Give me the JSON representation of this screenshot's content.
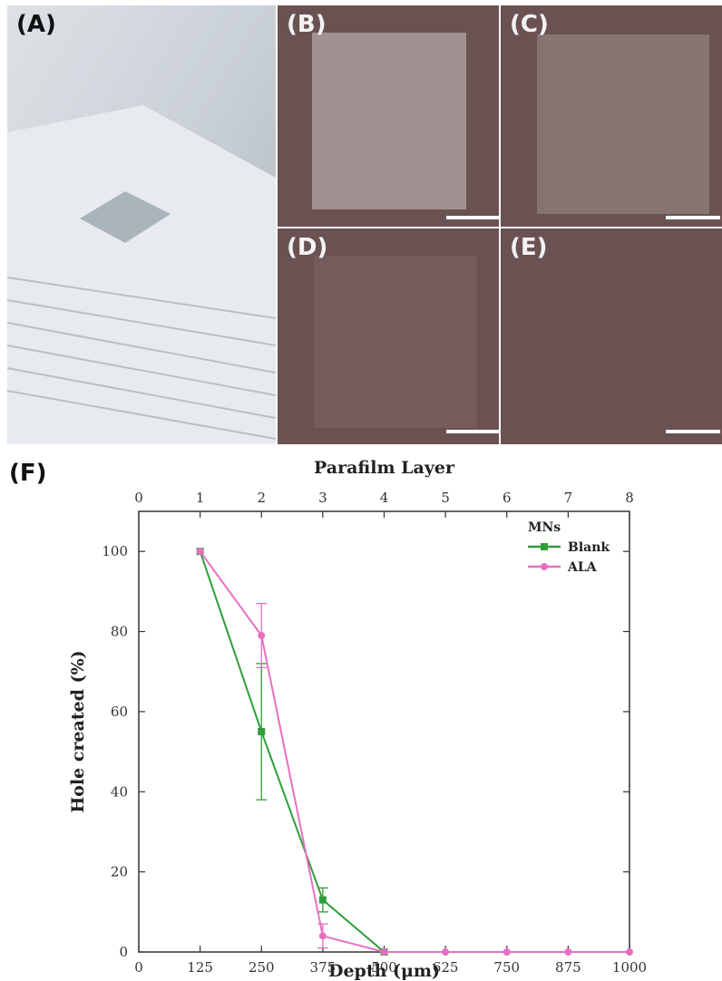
{
  "panels": {
    "a": {
      "label": "(A)"
    },
    "b": {
      "label": "(B)"
    },
    "c": {
      "label": "(C)"
    },
    "d": {
      "label": "(D)"
    },
    "e": {
      "label": "(E)"
    },
    "f": {
      "label": "(F)"
    }
  },
  "colors": {
    "background_dark": "#6b5252",
    "blank": "#2e9e3a",
    "ala": "#e86fc0"
  },
  "chart_data": {
    "type": "line",
    "xlabel": "Depth (μm)",
    "x2label": "Parafilm Layer",
    "ylabel": "Hole created (%)",
    "xlim": [
      0,
      1000
    ],
    "x2lim": [
      0,
      8
    ],
    "ylim": [
      0,
      110
    ],
    "xticks": [
      "0",
      "125",
      "250",
      "375",
      "500",
      "625",
      "750",
      "875",
      "1000"
    ],
    "x2ticks": [
      "0",
      "1",
      "2",
      "3",
      "4",
      "5",
      "6",
      "7",
      "8"
    ],
    "yticks": [
      "0",
      "20",
      "40",
      "60",
      "80",
      "100"
    ],
    "legend_title": "MNs",
    "legend_position": "top-right",
    "series": [
      {
        "name": "Blank",
        "color": "#2e9e3a",
        "x": [
          125,
          250,
          375,
          500
        ],
        "y": [
          100,
          55,
          13,
          0
        ],
        "err": [
          0,
          17,
          3,
          0
        ]
      },
      {
        "name": "ALA",
        "color": "#e86fc0",
        "x": [
          125,
          250,
          375,
          500,
          625,
          750,
          875,
          1000
        ],
        "y": [
          100,
          79,
          4,
          0,
          0,
          0,
          0,
          0
        ],
        "err": [
          0,
          8,
          3,
          0,
          0,
          0,
          0,
          0
        ]
      }
    ]
  }
}
